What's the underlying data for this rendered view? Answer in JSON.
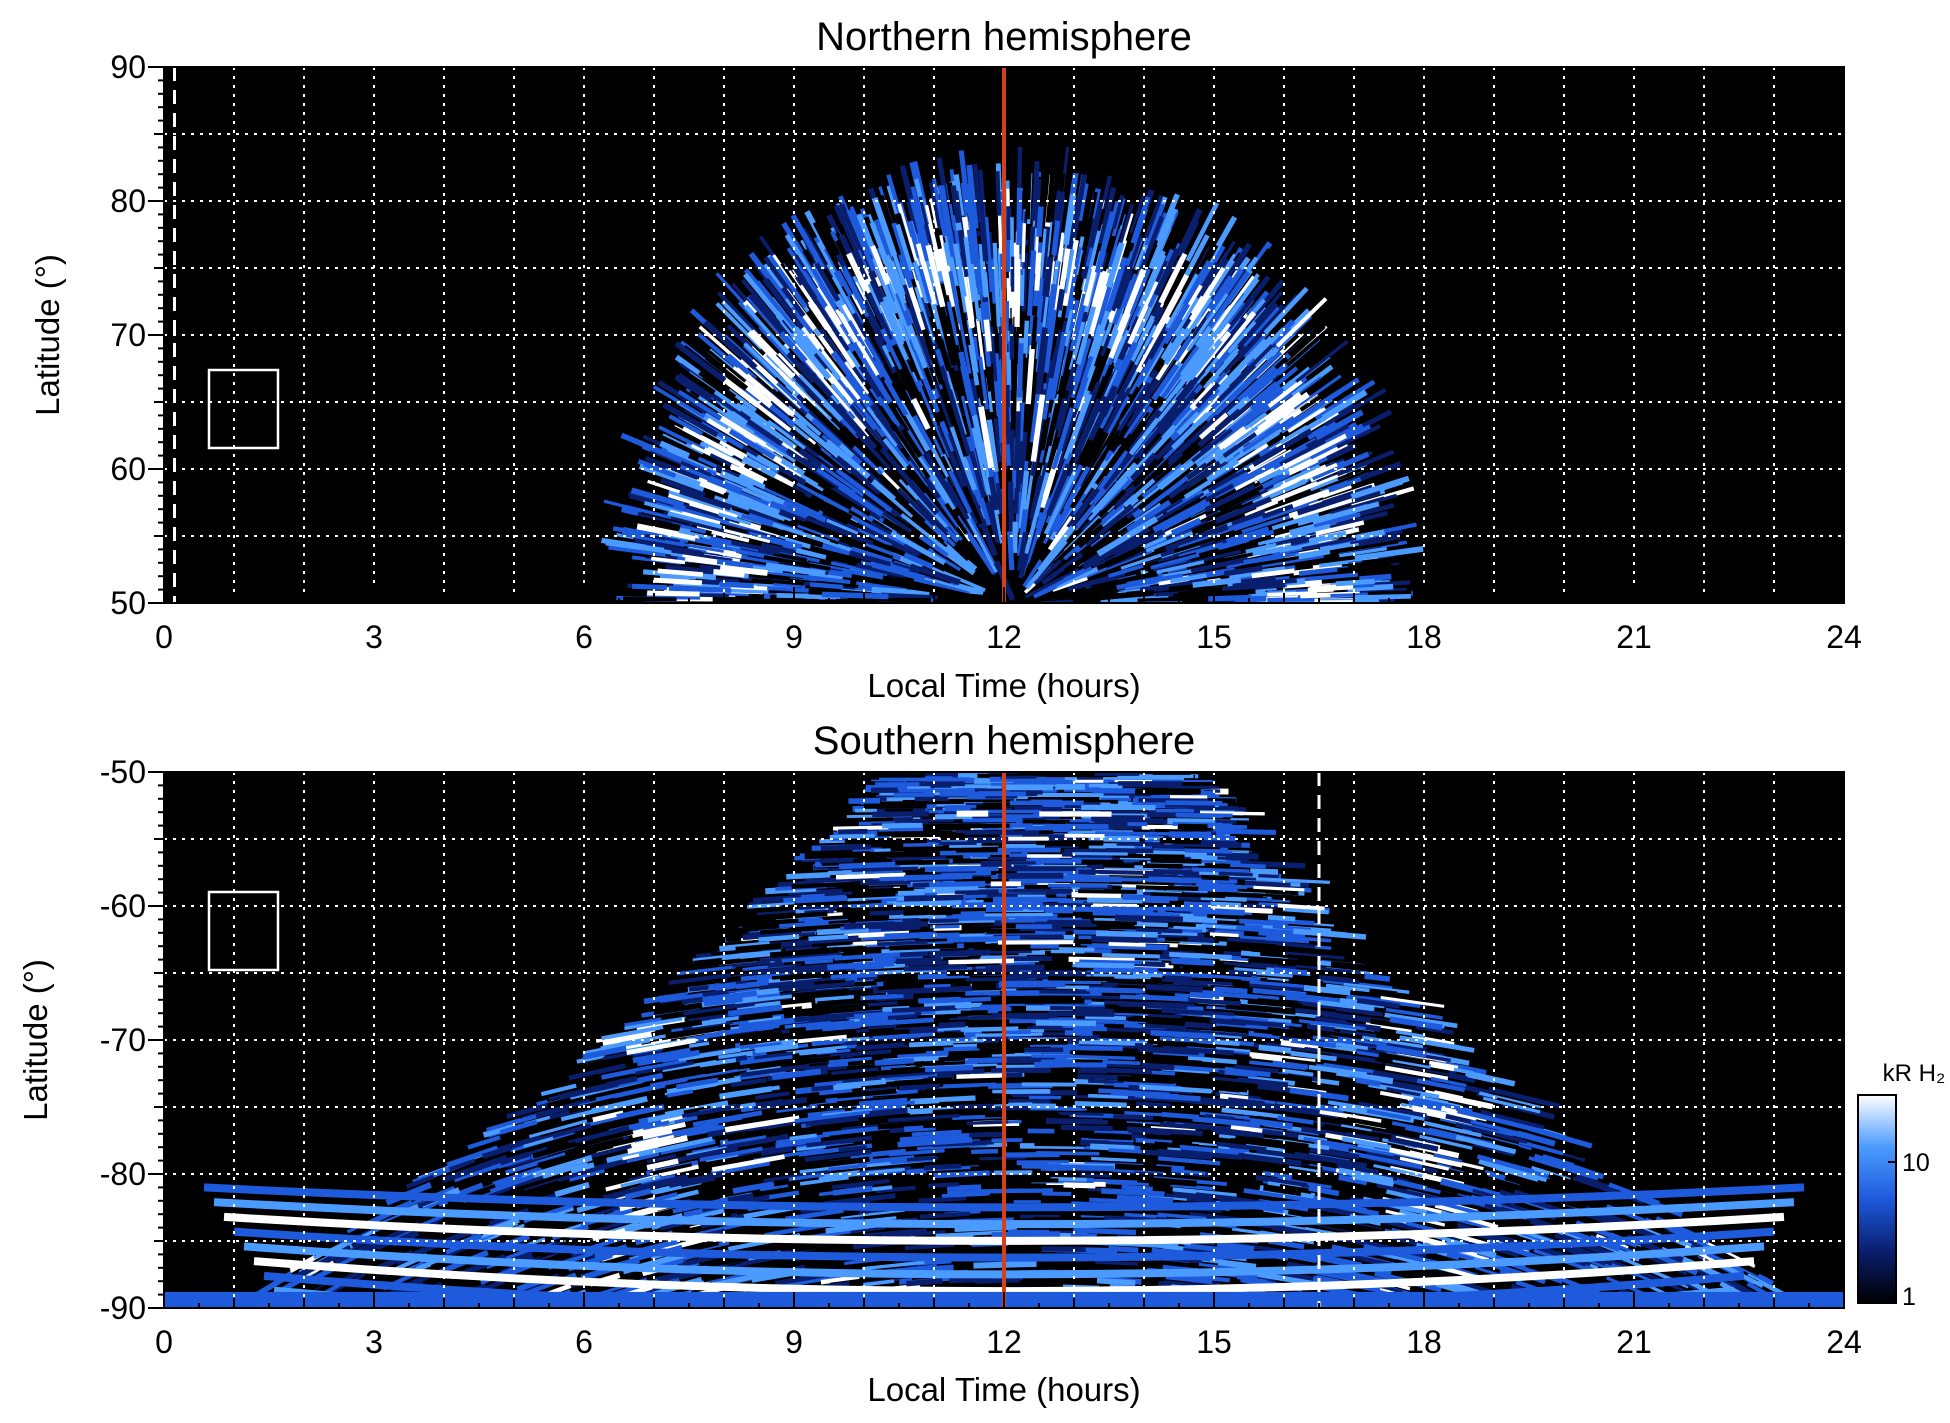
{
  "chart_data": [
    {
      "type": "heatmap",
      "title": "Northern hemisphere",
      "xlabel": "Local Time (hours)",
      "ylabel": "Latitude (°)",
      "xlim": [
        0,
        24
      ],
      "ylim": [
        50,
        90
      ],
      "xticks": [
        "0",
        "3",
        "6",
        "9",
        "12",
        "15",
        "18",
        "21",
        "24"
      ],
      "yticks": [
        "50",
        "60",
        "70",
        "80",
        "90"
      ],
      "grid": true,
      "noon_line_x": 12,
      "noon_line_color": "#d4401a",
      "dashed_line_x": 0.15,
      "emission_region": {
        "lt_start": 7.0,
        "lt_end": 17.2,
        "lat_max": 79.5,
        "auroral_oval_lat": 67
      }
    },
    {
      "type": "heatmap",
      "title": "Southern hemisphere",
      "xlabel": "Local Time (hours)",
      "ylabel": "Latitude (°)",
      "xlim": [
        0,
        24
      ],
      "ylim": [
        -90,
        -50
      ],
      "xticks": [
        "0",
        "3",
        "6",
        "9",
        "12",
        "15",
        "18",
        "21",
        "24"
      ],
      "yticks": [
        "-50",
        "-60",
        "-70",
        "-80",
        "-90"
      ],
      "grid": true,
      "noon_line_x": 12,
      "noon_line_color": "#d4401a",
      "dashed_line_x": 16.5,
      "emission_region": {
        "lt_start": 5.3,
        "lt_end": 19.0,
        "bright_arcs_lt": [
          6.5,
          17.8
        ]
      }
    }
  ],
  "colorbar": {
    "label": "kR H₂",
    "ticks": [
      "1",
      "10"
    ],
    "scale": "log",
    "colors": [
      "#000000",
      "#0a1e6e",
      "#1e5adc",
      "#4b9bff",
      "#ffffff"
    ]
  }
}
